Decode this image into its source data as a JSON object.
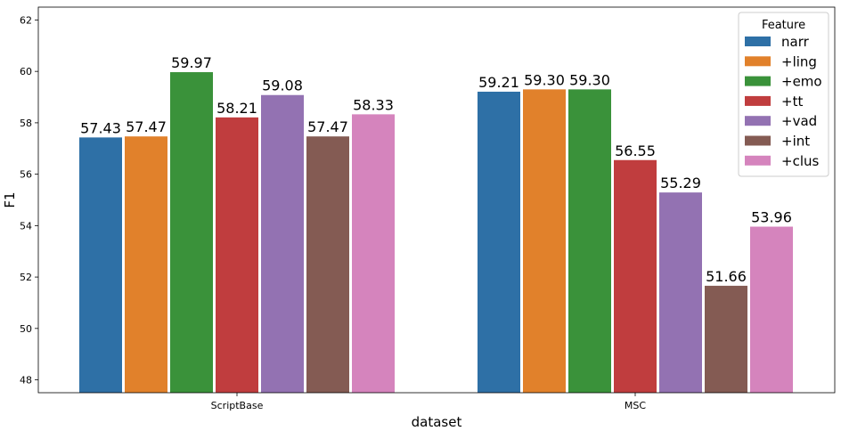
{
  "chart_data": {
    "type": "bar",
    "xlabel": "dataset",
    "ylabel": "F1",
    "ylim": [
      47.5,
      62.5
    ],
    "yticks": [
      48,
      50,
      52,
      54,
      56,
      58,
      60,
      62
    ],
    "categories": [
      "ScriptBase",
      "MSC"
    ],
    "legend": {
      "title": "Feature",
      "placement": "top-right"
    },
    "series": [
      {
        "name": "narr",
        "color": "#2e70a6",
        "values": [
          57.43,
          59.21
        ],
        "labels": [
          "57.43",
          "59.21"
        ]
      },
      {
        "name": "+ling",
        "color": "#e1812b",
        "values": [
          57.47,
          59.3
        ],
        "labels": [
          "57.47",
          "59.30"
        ]
      },
      {
        "name": "+emo",
        "color": "#3a923a",
        "values": [
          59.97,
          59.3
        ],
        "labels": [
          "59.97",
          "59.30"
        ]
      },
      {
        "name": "+tt",
        "color": "#c03d3e",
        "values": [
          58.21,
          56.55
        ],
        "labels": [
          "58.21",
          "56.55"
        ]
      },
      {
        "name": "+vad",
        "color": "#9372b2",
        "values": [
          59.08,
          55.29
        ],
        "labels": [
          "59.08",
          "55.29"
        ]
      },
      {
        "name": "+int",
        "color": "#845b53",
        "values": [
          57.47,
          51.66
        ],
        "labels": [
          "57.47",
          "51.66"
        ]
      },
      {
        "name": "+clus",
        "color": "#d584bd",
        "values": [
          58.33,
          53.96
        ],
        "labels": [
          "58.33",
          "53.96"
        ]
      }
    ]
  }
}
